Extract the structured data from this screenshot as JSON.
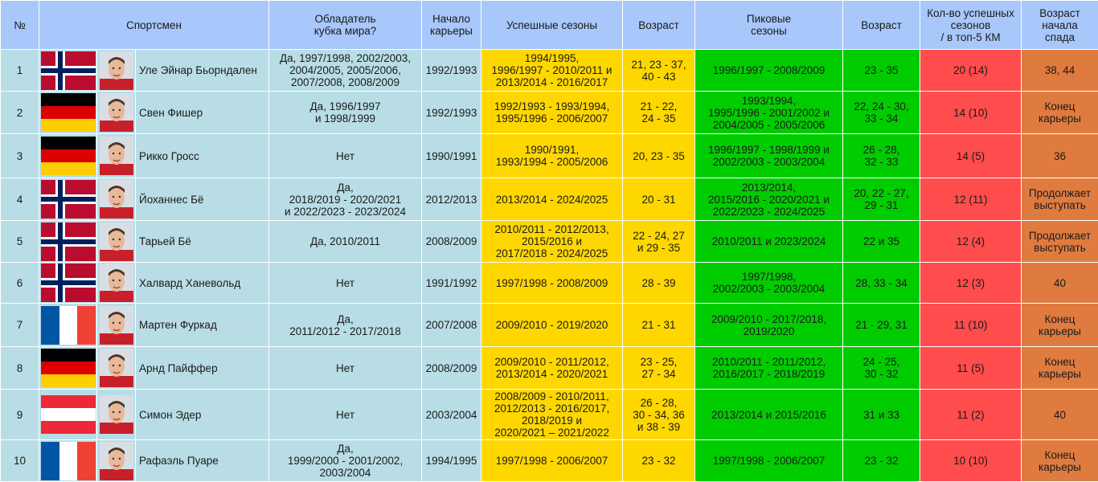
{
  "headers": {
    "num": "№",
    "athlete": "Спортсмен",
    "world_cup": "Обладатель\nкубка мира?",
    "career_start": "Начало\nкарьеры",
    "successful_seasons": "Успешные сезоны",
    "age": "Возраст",
    "peak_seasons": "Пиковые\nсезоны",
    "age2": "Возраст",
    "successful_count": "Кол-во успешных\nсезонов\n/ в топ-5 КМ",
    "decline_age": "Возраст\nначала\nспада"
  },
  "colors": {
    "header": "#a8c7fb",
    "row": "#b9dde6",
    "successful": "#ffd700",
    "peak": "#00cc00",
    "count": "#ff4d4d",
    "decline": "#e07b3f"
  },
  "rows": [
    {
      "num": "1",
      "flag": "Norway",
      "name": "Уле Эйнар Бьорндален",
      "world_cup": "Да, 1997/1998, 2002/2003,\n2004/2005, 2005/2006,\n2007/2008, 2008/2009",
      "career_start": "1992/1993",
      "successful_seasons": "1994/1995,\n1996/1997 - 2010/2011 и\n2013/2014 - 2016/2017",
      "age": "21, 23 - 37,\n40 - 43",
      "peak_seasons": "1996/1997 - 2008/2009",
      "age2": "23 - 35",
      "successful_count": "20 (14)",
      "decline_age": "38, 44"
    },
    {
      "num": "2",
      "flag": "Germany",
      "name": "Свен Фишер",
      "world_cup": "Да, 1996/1997\nи 1998/1999",
      "career_start": "1992/1993",
      "successful_seasons": "1992/1993 - 1993/1994,\n1995/1996 - 2006/2007",
      "age": "21 - 22,\n24 - 35",
      "peak_seasons": "1993/1994,\n1995/1996 - 2001/2002 и\n2004/2005 - 2005/2006",
      "age2": "22, 24 - 30,\n33 - 34",
      "successful_count": "14 (10)",
      "decline_age": "Конец\nкарьеры"
    },
    {
      "num": "3",
      "flag": "Germany",
      "name": "Рикко Гросс",
      "world_cup": "Нет",
      "career_start": "1990/1991",
      "successful_seasons": "1990/1991,\n1993/1994 - 2005/2006",
      "age": "20, 23 - 35",
      "peak_seasons": "1996/1997 - 1998/1999 и\n2002/2003 - 2003/2004",
      "age2": "26 - 28,\n32 - 33",
      "successful_count": "14 (5)",
      "decline_age": "36"
    },
    {
      "num": "4",
      "flag": "Norway",
      "name": "Йоханнес Бё",
      "world_cup": "Да,\n2018/2019 - 2020/2021\nи 2022/2023 - 2023/2024",
      "career_start": "2012/2013",
      "successful_seasons": "2013/2014 - 2024/2025",
      "age": "20 - 31",
      "peak_seasons": "2013/2014,\n2015/2016 - 2020/2021 и\n2022/2023 - 2024/2025",
      "age2": "20, 22 - 27,\n29 - 31",
      "successful_count": "12 (11)",
      "decline_age": "Продолжает\nвыступать"
    },
    {
      "num": "5",
      "flag": "Norway",
      "name": "Тарьей Бё",
      "world_cup": "Да, 2010/2011",
      "career_start": "2008/2009",
      "successful_seasons": "2010/2011 - 2012/2013,\n2015/2016 и\n2017/2018 - 2024/2025",
      "age": "22 - 24, 27\nи 29 - 35",
      "peak_seasons": "2010/2011 и 2023/2024",
      "age2": "22 и 35",
      "successful_count": "12 (4)",
      "decline_age": "Продолжает\nвыступать"
    },
    {
      "num": "6",
      "flag": "Norway",
      "name": "Халвард Ханевольд",
      "world_cup": "Нет",
      "career_start": "1991/1992",
      "successful_seasons": "1997/1998 - 2008/2009",
      "age": "28 - 39",
      "peak_seasons": "1997/1998,\n2002/2003 - 2003/2004",
      "age2": "28, 33 - 34",
      "successful_count": "12 (3)",
      "decline_age": "40"
    },
    {
      "num": "7",
      "flag": "France",
      "name": "Мартен Фуркад",
      "world_cup": "Да,\n2011/2012 - 2017/2018",
      "career_start": "2007/2008",
      "successful_seasons": "2009/2010 - 2019/2020",
      "age": "21 - 31",
      "peak_seasons": "2009/2010 - 2017/2018,\n2019/2020",
      "age2": "21 - 29, 31",
      "successful_count": "11 (10)",
      "decline_age": "Конец\nкарьеры"
    },
    {
      "num": "8",
      "flag": "Germany",
      "name": "Арнд Пайффер",
      "world_cup": "Нет",
      "career_start": "2008/2009",
      "successful_seasons": "2009/2010 - 2011/2012,\n2013/2014 - 2020/2021",
      "age": "23 - 25,\n27 - 34",
      "peak_seasons": "2010/2011 - 2011/2012,\n2016/2017 - 2018/2019",
      "age2": "24 - 25,\n30 - 32",
      "successful_count": "11 (5)",
      "decline_age": "Конец\nкарьеры"
    },
    {
      "num": "9",
      "flag": "Austria",
      "name": "Симон Эдер",
      "world_cup": "Нет",
      "career_start": "2003/2004",
      "successful_seasons": "2008/2009 - 2010/2011,\n2012/2013 - 2016/2017,\n2018/2019 и\n2020/2021 – 2021/2022",
      "age": "26 - 28,\n30 - 34, 36\nи 38 - 39",
      "peak_seasons": "2013/2014 и 2015/2016",
      "age2": "31 и 33",
      "successful_count": "11 (2)",
      "decline_age": "40"
    },
    {
      "num": "10",
      "flag": "France",
      "name": "Рафаэль Пуаре",
      "world_cup": "Да,\n1999/2000 - 2001/2002,\n2003/2004",
      "career_start": "1994/1995",
      "successful_seasons": "1997/1998 - 2006/2007",
      "age": "23 - 32",
      "peak_seasons": "1997/1998 - 2006/2007",
      "age2": "23 - 32",
      "successful_count": "10 (10)",
      "decline_age": "Конец\nкарьеры"
    }
  ]
}
